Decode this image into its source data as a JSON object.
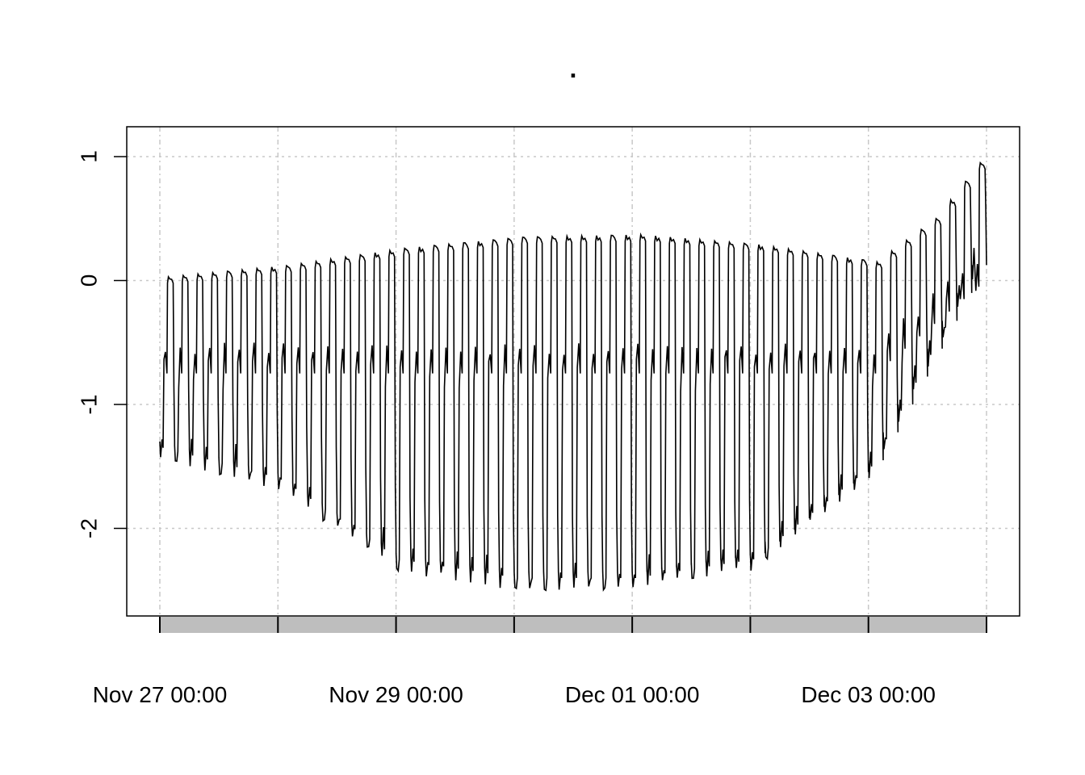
{
  "chart_data": {
    "type": "line",
    "title": ".",
    "xlabel": "",
    "ylabel": "",
    "x_axis": {
      "type": "datetime",
      "start": "2023-11-27 00:00",
      "end": "2023-12-04 00:00",
      "major_ticks": [
        "Nov 27 00:00",
        "Nov 28 00:00",
        "Nov 29 00:00",
        "Nov 30 00:00",
        "Dec 01 00:00",
        "Dec 02 00:00",
        "Dec 03 00:00",
        "Dec 04 00:00"
      ],
      "tick_labels": [
        "Nov 27 00:00",
        "Nov 29 00:00",
        "Dec 01 00:00",
        "Dec 03 00:00"
      ]
    },
    "y_axis": {
      "ylim": [
        -2.7,
        1.25
      ],
      "ticks": [
        1,
        0,
        -1,
        -2
      ],
      "tick_labels": [
        "1",
        "0",
        "-1",
        "-2"
      ]
    },
    "grid": true,
    "series": [
      {
        "color": "#000000",
        "pattern": "periodic square-like oscillation, period ~3 hours",
        "envelope_upper": [
          {
            "x": "Nov 27 00:00",
            "y": 0.03
          },
          {
            "x": "Nov 28 00:00",
            "y": 0.12
          },
          {
            "x": "Nov 29 00:00",
            "y": 0.26
          },
          {
            "x": "Nov 30 00:00",
            "y": 0.35
          },
          {
            "x": "Dec 01 00:00",
            "y": 0.37
          },
          {
            "x": "Dec 02 00:00",
            "y": 0.29
          },
          {
            "x": "Dec 03 00:00",
            "y": 0.15
          },
          {
            "x": "Dec 03 12:00",
            "y": 0.5
          },
          {
            "x": "Dec 04 00:00",
            "y": 1.1
          }
        ],
        "envelope_lower": [
          {
            "x": "Nov 27 00:00",
            "y": -1.45
          },
          {
            "x": "Nov 28 00:00",
            "y": -1.7
          },
          {
            "x": "Nov 29 00:00",
            "y": -2.35
          },
          {
            "x": "Nov 30 00:00",
            "y": -2.5
          },
          {
            "x": "Dec 01 00:00",
            "y": -2.5
          },
          {
            "x": "Dec 02 00:00",
            "y": -2.35
          },
          {
            "x": "Dec 03 00:00",
            "y": -1.6
          },
          {
            "x": "Dec 03 12:00",
            "y": -0.7
          },
          {
            "x": "Dec 04 00:00",
            "y": 0.2
          }
        ],
        "mid_level": -0.6
      }
    ]
  }
}
